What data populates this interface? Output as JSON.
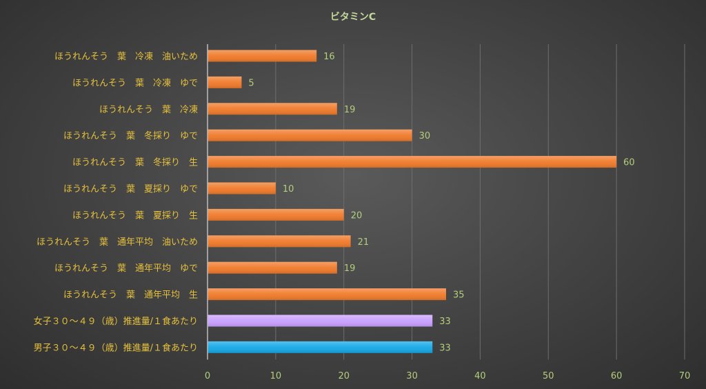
{
  "chart_data": {
    "type": "bar",
    "orientation": "horizontal",
    "title": "ビタミンC",
    "categories": [
      "ほうれんそう　葉　冷凍　油いため",
      "ほうれんそう　葉　冷凍　ゆで",
      "ほうれんそう　葉　冷凍",
      "ほうれんそう　葉　冬採り　ゆで",
      "ほうれんそう　葉　冬採り　生",
      "ほうれんそう　葉　夏採り　ゆで",
      "ほうれんそう　葉　夏採り　生",
      "ほうれんそう　葉　通年平均　油いため",
      "ほうれんそう　葉　通年平均　ゆで",
      "ほうれんそう　葉　通年平均　生",
      "女子３０～４９（歳）推進量/１食あたり",
      "男子３０～４９（歳）推進量/１食あたり"
    ],
    "values": [
      16,
      5,
      19,
      30,
      60,
      10,
      20,
      21,
      19,
      35,
      33,
      33
    ],
    "value_labels": [
      "16",
      "5",
      "19",
      "30",
      "60",
      "10",
      "20",
      "21",
      "19",
      "35",
      "33",
      "33"
    ],
    "bar_colors": [
      "#f07a2a",
      "#f07a2a",
      "#f07a2a",
      "#f07a2a",
      "#f07a2a",
      "#f07a2a",
      "#f07a2a",
      "#f07a2a",
      "#f07a2a",
      "#f07a2a",
      "#c9a0ff",
      "#14a8e6"
    ],
    "xlim": [
      0,
      70
    ],
    "x_ticks": [
      "0",
      "10",
      "20",
      "30",
      "40",
      "50",
      "60",
      "70"
    ],
    "grid": true,
    "legend": "none"
  }
}
